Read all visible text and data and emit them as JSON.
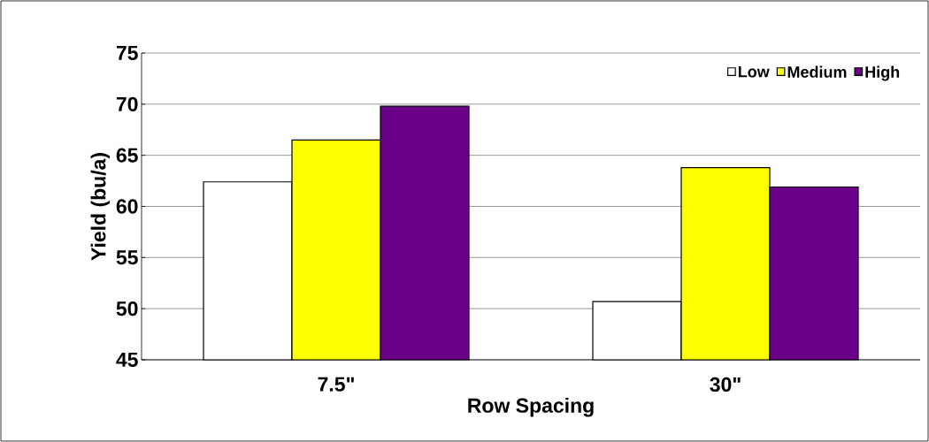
{
  "chart_data": {
    "type": "bar",
    "xlabel": "Row Spacing",
    "ylabel": "Yield (bu/a)",
    "categories": [
      "7.5\"",
      "30\""
    ],
    "series": [
      {
        "name": "Low",
        "color": "#ffffff",
        "values": [
          62.4,
          50.7
        ]
      },
      {
        "name": "Medium",
        "color": "#ffff00",
        "values": [
          66.5,
          63.8
        ]
      },
      {
        "name": "High",
        "color": "#6a0088",
        "values": [
          69.8,
          61.9
        ]
      }
    ],
    "ylim": [
      45,
      75
    ],
    "yticks": [
      45,
      50,
      55,
      60,
      65,
      70,
      75
    ],
    "grid": "y",
    "legend": "top right"
  }
}
